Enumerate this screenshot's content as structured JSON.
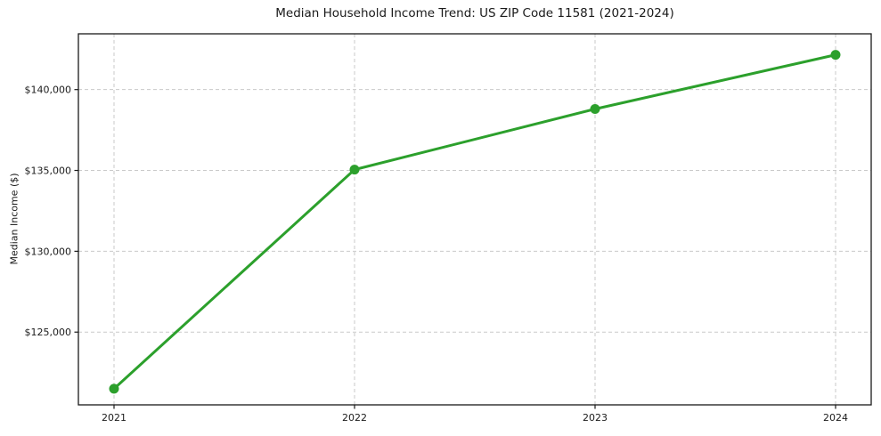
{
  "figure": {
    "title": "Median Household Income Trend: US ZIP Code 11581 (2021-2024)"
  },
  "chart_data": {
    "type": "line",
    "title": "Median Household Income Trend: US ZIP Code 11581 (2021-2024)",
    "categories": [
      "2021",
      "2022",
      "2023",
      "2024"
    ],
    "series": [
      {
        "name": "Median Household Income",
        "values": [
          121500,
          135050,
          138800,
          142150
        ]
      }
    ],
    "xlabel": "",
    "ylabel": "Median Income ($)",
    "ylim": [
      120500,
      143450
    ],
    "yticks": [
      {
        "value": 125000,
        "label": "$125,000"
      },
      {
        "value": 130000,
        "label": "$130,000"
      },
      {
        "value": 135000,
        "label": "$135,000"
      },
      {
        "value": 140000,
        "label": "$140,000"
      }
    ],
    "grid": true,
    "grid_style": "dashed",
    "legend": "none",
    "marker": "circle"
  },
  "colors": {
    "line": "#2ca02c",
    "grid": "#c9c9c9",
    "spine": "#1a1a1a",
    "text": "#1a1a1a",
    "background": "#ffffff"
  }
}
